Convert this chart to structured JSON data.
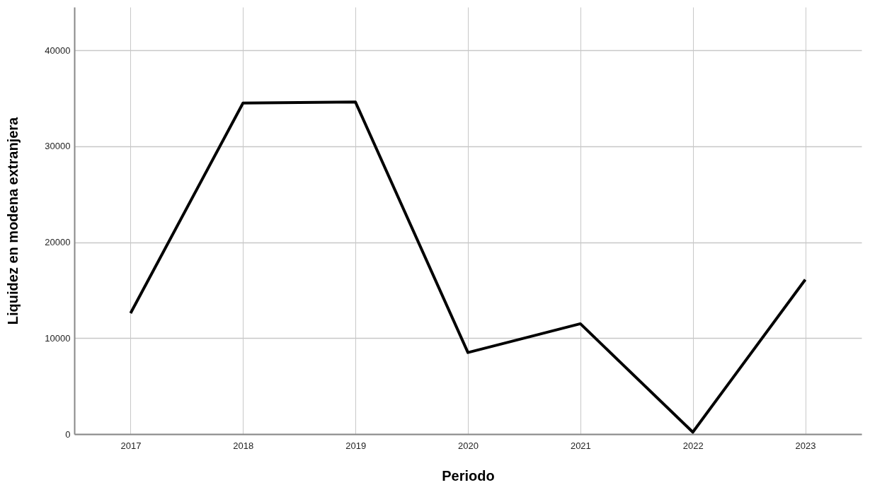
{
  "chart_data": {
    "type": "line",
    "xlabel": "Periodo",
    "ylabel": "Liquidez en modena extranjera",
    "categories": [
      "2017",
      "2018",
      "2019",
      "2020",
      "2021",
      "2022",
      "2023"
    ],
    "series": [
      {
        "color": "#000000",
        "values": [
          12600,
          34500,
          34600,
          8500,
          11500,
          200,
          16100
        ]
      }
    ],
    "ylim": [
      0,
      44500
    ],
    "yticks": [
      0,
      10000,
      20000,
      30000,
      40000
    ],
    "grid": true,
    "legend": false,
    "marker": "none",
    "line_style": "solid"
  }
}
